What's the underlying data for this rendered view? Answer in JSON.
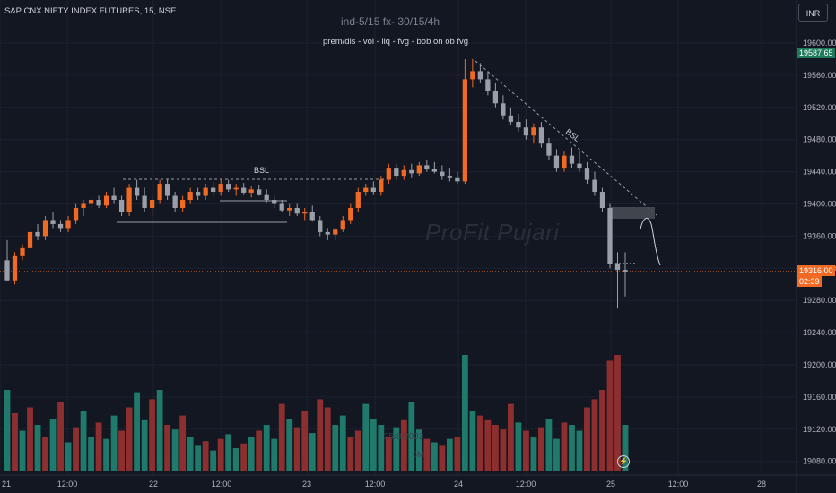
{
  "header": {
    "symbol": "S&P CNX NIFTY INDEX FUTURES, 15, NSE",
    "indicator_line1": "ind-5/15 fx- 30/15/4h",
    "indicator_line2": "prem/dis - vol - liq - fvg - bob on ob fvg",
    "watermark": "ProFit Pujari",
    "currency": "INR",
    "bottom_watermark_1": "25/8/2023",
    "bottom_watermark_2": "5M"
  },
  "price_tags": {
    "high_tag": "19587.65",
    "last_price": "19316.00",
    "countdown": "02:39"
  },
  "annotations": {
    "bsl_left": "BSL",
    "bsl_right": "BSL"
  },
  "colors": {
    "background": "#131722",
    "up": "#f06a23",
    "down": "#9a9ea8",
    "vol_up": "#1f7a6c",
    "vol_down": "#8e2f2f",
    "last_price": "#f06a23",
    "high_tag": "#1e7a5a"
  },
  "chart_data": {
    "type": "candlestick",
    "y_axis": {
      "ticks": [
        19600,
        19560,
        19520,
        19480,
        19440,
        19400,
        19360,
        19320,
        19280,
        19240,
        19200,
        19160,
        19120,
        19080
      ],
      "tick_labels": [
        "19600.00",
        "19560.00",
        "19520.00",
        "19480.00",
        "19440.00",
        "19400.00",
        "19360.00",
        "19320.00",
        "19280.00",
        "19240.00",
        "19200.00",
        "19160.00",
        "19120.00",
        "19080.00"
      ]
    },
    "x_axis": {
      "tick_labels": [
        "21",
        "12:00",
        "22",
        "12:00",
        "23",
        "12:00",
        "24",
        "12:00",
        "25",
        "12:00",
        "28"
      ]
    },
    "candles": [
      [
        19330,
        19355,
        19305,
        19305
      ],
      [
        19305,
        19340,
        19300,
        19335
      ],
      [
        19335,
        19350,
        19330,
        19345
      ],
      [
        19345,
        19370,
        19340,
        19365
      ],
      [
        19365,
        19375,
        19355,
        19360
      ],
      [
        19360,
        19385,
        19355,
        19380
      ],
      [
        19380,
        19390,
        19370,
        19375
      ],
      [
        19375,
        19380,
        19365,
        19370
      ],
      [
        19370,
        19385,
        19365,
        19380
      ],
      [
        19380,
        19400,
        19375,
        19395
      ],
      [
        19395,
        19405,
        19385,
        19400
      ],
      [
        19400,
        19410,
        19395,
        19405
      ],
      [
        19405,
        19410,
        19395,
        19398
      ],
      [
        19398,
        19415,
        19395,
        19410
      ],
      [
        19410,
        19420,
        19400,
        19405
      ],
      [
        19405,
        19410,
        19385,
        19390
      ],
      [
        19390,
        19425,
        19385,
        19420
      ],
      [
        19420,
        19430,
        19405,
        19410
      ],
      [
        19410,
        19420,
        19390,
        19395
      ],
      [
        19395,
        19410,
        19385,
        19405
      ],
      [
        19405,
        19430,
        19400,
        19425
      ],
      [
        19425,
        19430,
        19405,
        19410
      ],
      [
        19410,
        19415,
        19390,
        19395
      ],
      [
        19395,
        19410,
        19390,
        19405
      ],
      [
        19405,
        19420,
        19400,
        19415
      ],
      [
        19415,
        19420,
        19405,
        19410
      ],
      [
        19410,
        19425,
        19405,
        19420
      ],
      [
        19420,
        19428,
        19410,
        19415
      ],
      [
        19415,
        19430,
        19410,
        19425
      ],
      [
        19425,
        19430,
        19415,
        19418
      ],
      [
        19418,
        19425,
        19410,
        19420
      ],
      [
        19420,
        19426,
        19412,
        19414
      ],
      [
        19414,
        19422,
        19408,
        19418
      ],
      [
        19418,
        19424,
        19410,
        19412
      ],
      [
        19412,
        19418,
        19402,
        19405
      ],
      [
        19405,
        19410,
        19395,
        19400
      ],
      [
        19400,
        19405,
        19390,
        19392
      ],
      [
        19392,
        19400,
        19385,
        19395
      ],
      [
        19395,
        19400,
        19385,
        19388
      ],
      [
        19388,
        19395,
        19380,
        19390
      ],
      [
        19390,
        19398,
        19378,
        19380
      ],
      [
        19380,
        19385,
        19360,
        19365
      ],
      [
        19365,
        19370,
        19355,
        19362
      ],
      [
        19362,
        19370,
        19355,
        19368
      ],
      [
        19368,
        19385,
        19365,
        19380
      ],
      [
        19380,
        19400,
        19375,
        19395
      ],
      [
        19395,
        19420,
        19390,
        19415
      ],
      [
        19415,
        19425,
        19410,
        19420
      ],
      [
        19420,
        19428,
        19412,
        19415
      ],
      [
        19415,
        19435,
        19410,
        19430
      ],
      [
        19430,
        19450,
        19425,
        19445
      ],
      [
        19445,
        19450,
        19430,
        19435
      ],
      [
        19435,
        19448,
        19430,
        19442
      ],
      [
        19442,
        19450,
        19432,
        19438
      ],
      [
        19438,
        19452,
        19435,
        19448
      ],
      [
        19448,
        19455,
        19440,
        19444
      ],
      [
        19444,
        19452,
        19438,
        19440
      ],
      [
        19440,
        19448,
        19430,
        19435
      ],
      [
        19435,
        19445,
        19428,
        19432
      ],
      [
        19432,
        19440,
        19425,
        19428
      ],
      [
        19428,
        19580,
        19425,
        19555
      ],
      [
        19555,
        19580,
        19545,
        19565
      ],
      [
        19565,
        19575,
        19550,
        19555
      ],
      [
        19555,
        19565,
        19535,
        19540
      ],
      [
        19540,
        19550,
        19520,
        19525
      ],
      [
        19525,
        19535,
        19505,
        19510
      ],
      [
        19510,
        19520,
        19498,
        19502
      ],
      [
        19502,
        19512,
        19490,
        19495
      ],
      [
        19495,
        19505,
        19480,
        19485
      ],
      [
        19485,
        19500,
        19475,
        19495
      ],
      [
        19495,
        19502,
        19470,
        19475
      ],
      [
        19475,
        19482,
        19455,
        19460
      ],
      [
        19460,
        19468,
        19440,
        19445
      ],
      [
        19445,
        19465,
        19440,
        19460
      ],
      [
        19460,
        19470,
        19445,
        19450
      ],
      [
        19450,
        19465,
        19440,
        19445
      ],
      [
        19445,
        19452,
        19425,
        19430
      ],
      [
        19430,
        19440,
        19410,
        19415
      ],
      [
        19415,
        19420,
        19390,
        19395
      ],
      [
        19395,
        19400,
        19320,
        19325
      ],
      [
        19325,
        19340,
        19270,
        19318
      ],
      [
        19318,
        19340,
        19285,
        19316
      ]
    ],
    "volume_scale_max": 100,
    "volumes": [
      [
        70,
        1
      ],
      [
        50,
        0
      ],
      [
        35,
        1
      ],
      [
        55,
        0
      ],
      [
        40,
        1
      ],
      [
        30,
        0
      ],
      [
        45,
        1
      ],
      [
        60,
        0
      ],
      [
        25,
        1
      ],
      [
        38,
        0
      ],
      [
        52,
        1
      ],
      [
        30,
        1
      ],
      [
        42,
        0
      ],
      [
        28,
        1
      ],
      [
        48,
        1
      ],
      [
        35,
        0
      ],
      [
        55,
        0
      ],
      [
        68,
        1
      ],
      [
        44,
        1
      ],
      [
        62,
        0
      ],
      [
        70,
        1
      ],
      [
        40,
        0
      ],
      [
        36,
        1
      ],
      [
        48,
        0
      ],
      [
        30,
        1
      ],
      [
        22,
        1
      ],
      [
        26,
        0
      ],
      [
        18,
        1
      ],
      [
        28,
        0
      ],
      [
        32,
        1
      ],
      [
        20,
        1
      ],
      [
        24,
        0
      ],
      [
        30,
        1
      ],
      [
        35,
        0
      ],
      [
        40,
        1
      ],
      [
        28,
        1
      ],
      [
        58,
        0
      ],
      [
        45,
        1
      ],
      [
        38,
        0
      ],
      [
        52,
        0
      ],
      [
        33,
        1
      ],
      [
        62,
        0
      ],
      [
        55,
        0
      ],
      [
        40,
        1
      ],
      [
        48,
        1
      ],
      [
        30,
        0
      ],
      [
        35,
        0
      ],
      [
        58,
        1
      ],
      [
        45,
        1
      ],
      [
        40,
        1
      ],
      [
        30,
        0
      ],
      [
        38,
        1
      ],
      [
        44,
        0
      ],
      [
        60,
        1
      ],
      [
        36,
        1
      ],
      [
        28,
        0
      ],
      [
        25,
        1
      ],
      [
        22,
        0
      ],
      [
        28,
        1
      ],
      [
        30,
        0
      ],
      [
        100,
        1
      ],
      [
        52,
        1
      ],
      [
        48,
        0
      ],
      [
        44,
        0
      ],
      [
        40,
        0
      ],
      [
        36,
        0
      ],
      [
        58,
        0
      ],
      [
        42,
        1
      ],
      [
        35,
        0
      ],
      [
        30,
        1
      ],
      [
        38,
        0
      ],
      [
        45,
        1
      ],
      [
        28,
        1
      ],
      [
        42,
        0
      ],
      [
        40,
        1
      ],
      [
        35,
        1
      ],
      [
        55,
        0
      ],
      [
        62,
        0
      ],
      [
        70,
        0
      ],
      [
        95,
        0
      ],
      [
        100,
        0
      ],
      [
        40,
        1
      ]
    ]
  }
}
